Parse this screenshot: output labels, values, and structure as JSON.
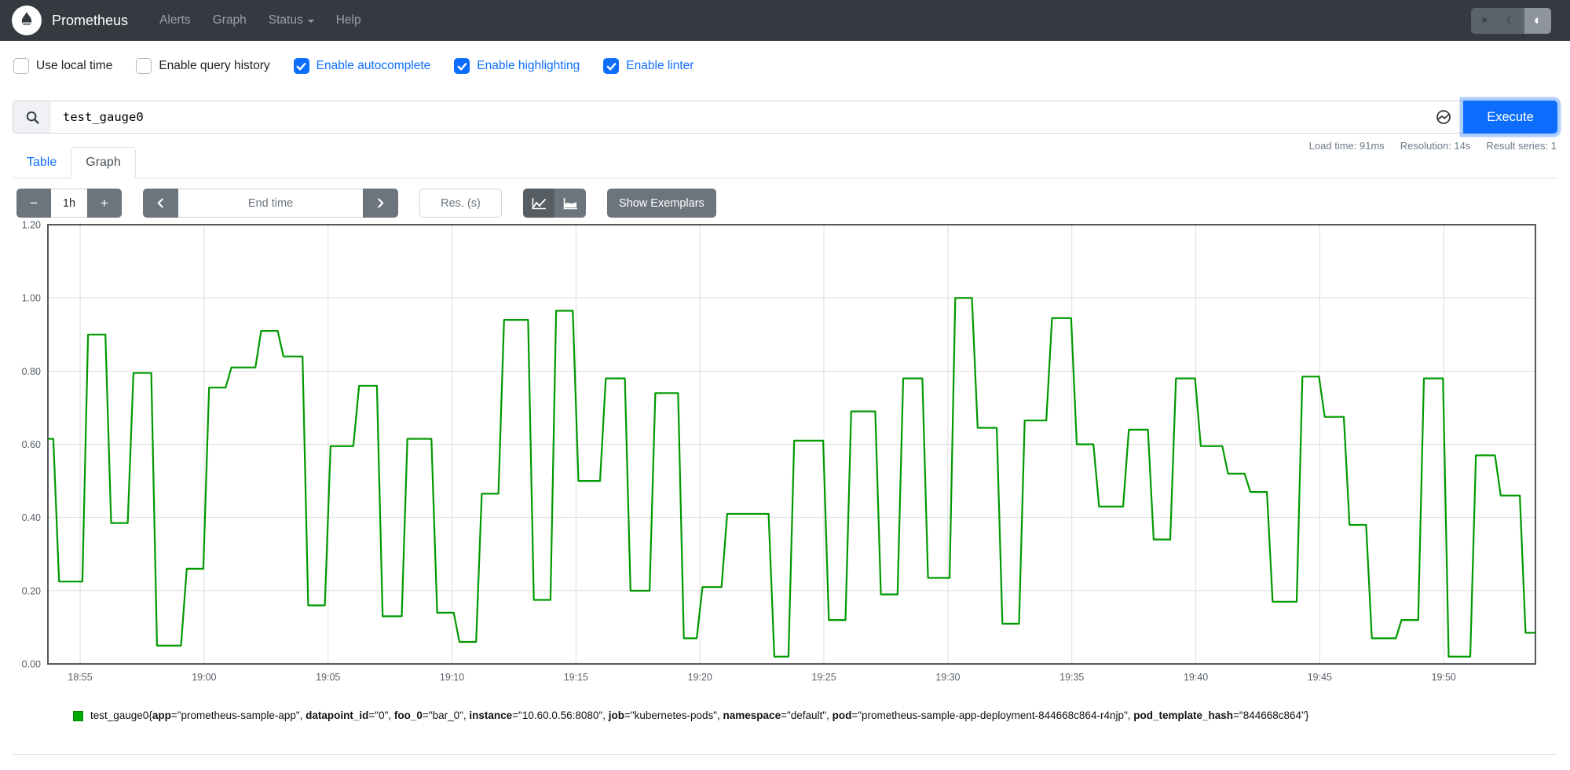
{
  "colors": {
    "navbar_bg": "#343a40",
    "accent_blue": "#0d6efd",
    "button_gray": "#6c757d",
    "series_green": "#009900"
  },
  "navbar": {
    "brand": "Prometheus",
    "links": [
      {
        "label": "Alerts"
      },
      {
        "label": "Graph"
      },
      {
        "label": "Status",
        "has_caret": true
      },
      {
        "label": "Help"
      }
    ],
    "theme": {
      "options": [
        "light",
        "dark",
        "auto"
      ],
      "active": "auto",
      "icons": {
        "light": "☀",
        "dark": "☾",
        "auto": "◐"
      }
    }
  },
  "options": [
    {
      "label": "Use local time",
      "checked": false
    },
    {
      "label": "Enable query history",
      "checked": false
    },
    {
      "label": "Enable autocomplete",
      "checked": true
    },
    {
      "label": "Enable highlighting",
      "checked": true
    },
    {
      "label": "Enable linter",
      "checked": true
    }
  ],
  "query": {
    "value": "test_gauge0",
    "execute_label": "Execute"
  },
  "stats": [
    {
      "text": "Load time: 91ms"
    },
    {
      "text": "Resolution: 14s"
    },
    {
      "text": "Result series: 1"
    }
  ],
  "tabs": [
    {
      "label": "Table",
      "active": false
    },
    {
      "label": "Graph",
      "active": true
    }
  ],
  "controls": {
    "zoom_out": "−",
    "range": "1h",
    "zoom_in": "+",
    "end_time_placeholder": "End time",
    "res_placeholder": "Res. (s)",
    "show_exemplars_label": "Show Exemplars"
  },
  "chart_data": {
    "type": "line",
    "step": true,
    "grid": true,
    "legend_position": "bottom",
    "ylim": [
      0,
      1.2
    ],
    "y_ticks": [
      "0.00",
      "0.20",
      "0.40",
      "0.60",
      "0.80",
      "1.00",
      "1.20"
    ],
    "x_range_min": [
      0,
      60
    ],
    "x_ticks": [
      {
        "label": "18:55",
        "offset_min": 1.3
      },
      {
        "label": "19:00",
        "offset_min": 6.3
      },
      {
        "label": "19:05",
        "offset_min": 11.3
      },
      {
        "label": "19:10",
        "offset_min": 16.3
      },
      {
        "label": "19:15",
        "offset_min": 21.3
      },
      {
        "label": "19:20",
        "offset_min": 26.3
      },
      {
        "label": "19:25",
        "offset_min": 31.3
      },
      {
        "label": "19:30",
        "offset_min": 36.3
      },
      {
        "label": "19:35",
        "offset_min": 41.3
      },
      {
        "label": "19:40",
        "offset_min": 46.3
      },
      {
        "label": "19:45",
        "offset_min": 51.3
      },
      {
        "label": "19:50",
        "offset_min": 56.3
      }
    ],
    "transition_min": 0.23,
    "series": [
      {
        "name": "test_gauge0{app=\"prometheus-sample-app\", datapoint_id=\"0\", foo_0=\"bar_0\", instance=\"10.60.0.56:8080\", job=\"kubernetes-pods\", namespace=\"default\", pod=\"prometheus-sample-app-deployment-844668c864-r4njp\", pod_template_hash=\"844668c864\"}",
        "color": "#009900",
        "levels": [
          [
            0.0,
            0.615
          ],
          [
            0.45,
            0.225
          ],
          [
            1.62,
            0.9
          ],
          [
            2.55,
            0.385
          ],
          [
            3.45,
            0.795
          ],
          [
            4.4,
            0.05
          ],
          [
            5.6,
            0.26
          ],
          [
            6.5,
            0.755
          ],
          [
            7.4,
            0.81
          ],
          [
            8.6,
            0.91
          ],
          [
            9.5,
            0.84
          ],
          [
            10.5,
            0.16
          ],
          [
            11.4,
            0.595
          ],
          [
            12.55,
            0.76
          ],
          [
            13.5,
            0.13
          ],
          [
            14.5,
            0.615
          ],
          [
            15.7,
            0.14
          ],
          [
            16.6,
            0.06
          ],
          [
            17.5,
            0.465
          ],
          [
            18.4,
            0.94
          ],
          [
            19.6,
            0.175
          ],
          [
            20.5,
            0.965
          ],
          [
            21.4,
            0.5
          ],
          [
            22.5,
            0.78
          ],
          [
            23.5,
            0.2
          ],
          [
            24.5,
            0.74
          ],
          [
            25.65,
            0.07
          ],
          [
            26.4,
            0.21
          ],
          [
            27.4,
            0.41
          ],
          [
            29.3,
            0.02
          ],
          [
            30.1,
            0.61
          ],
          [
            31.5,
            0.12
          ],
          [
            32.4,
            0.69
          ],
          [
            33.6,
            0.19
          ],
          [
            34.5,
            0.78
          ],
          [
            35.5,
            0.235
          ],
          [
            36.6,
            1.0
          ],
          [
            37.5,
            0.645
          ],
          [
            38.5,
            0.11
          ],
          [
            39.4,
            0.665
          ],
          [
            40.5,
            0.945
          ],
          [
            41.5,
            0.6
          ],
          [
            42.4,
            0.43
          ],
          [
            43.6,
            0.64
          ],
          [
            44.6,
            0.34
          ],
          [
            45.5,
            0.78
          ],
          [
            46.5,
            0.595
          ],
          [
            47.6,
            0.52
          ],
          [
            48.5,
            0.47
          ],
          [
            49.4,
            0.17
          ],
          [
            50.6,
            0.785
          ],
          [
            51.5,
            0.675
          ],
          [
            52.5,
            0.38
          ],
          [
            53.4,
            0.07
          ],
          [
            54.6,
            0.12
          ],
          [
            55.5,
            0.78
          ],
          [
            56.5,
            0.02
          ],
          [
            57.6,
            0.57
          ],
          [
            58.6,
            0.46
          ],
          [
            59.6,
            0.085
          ]
        ]
      }
    ]
  },
  "legend": {
    "metric": "test_gauge0",
    "series_color": "#00aa00",
    "labels": [
      {
        "name": "app",
        "value": "prometheus-sample-app"
      },
      {
        "name": "datapoint_id",
        "value": "0"
      },
      {
        "name": "foo_0",
        "value": "bar_0"
      },
      {
        "name": "instance",
        "value": "10.60.0.56:8080"
      },
      {
        "name": "job",
        "value": "kubernetes-pods"
      },
      {
        "name": "namespace",
        "value": "default"
      },
      {
        "name": "pod",
        "value": "prometheus-sample-app-deployment-844668c864-r4njp"
      },
      {
        "name": "pod_template_hash",
        "value": "844668c864"
      }
    ]
  }
}
